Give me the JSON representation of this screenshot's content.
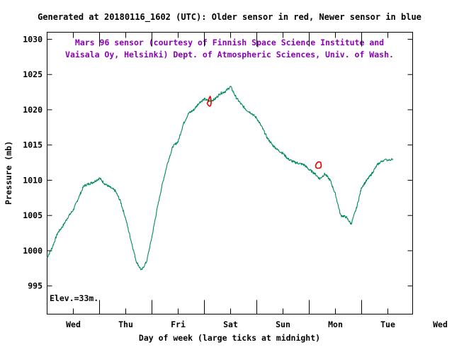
{
  "chart_data": {
    "type": "line",
    "title": "Generated at 20180116_1602 (UTC): Older sensor in red, Newer sensor in blue",
    "credit_lines": [
      "Mars 96 sensor (courtesy of Finnish Space Science Institute and",
      "Vaisala Oy, Helsinki) Dept. of Atmospheric Sciences, Univ. of Wash."
    ],
    "xlabel": "Day of week (large ticks at midnight)",
    "ylabel": "Pressure (mb)",
    "annotation": "Elev.=33m.",
    "xlim": [
      0,
      7
    ],
    "ylim": [
      991,
      1031
    ],
    "yticks": [
      995,
      1000,
      1005,
      1010,
      1015,
      1020,
      1025,
      1030
    ],
    "day_labels": [
      "Wed",
      "Thu",
      "Fri",
      "Sat",
      "Sun",
      "Mon",
      "Tue",
      "Wed"
    ],
    "grid": false,
    "colors": {
      "primary_series": "#008b5a",
      "older_sensor": "#e00000",
      "credit_text": "#8a00b8"
    },
    "series": [
      {
        "color": "#008b5a",
        "x": [
          0.0,
          0.1,
          0.2,
          0.3,
          0.4,
          0.5,
          0.6,
          0.7,
          0.8,
          0.9,
          1.0,
          1.1,
          1.2,
          1.3,
          1.4,
          1.5,
          1.6,
          1.7,
          1.8,
          1.9,
          2.0,
          2.1,
          2.2,
          2.3,
          2.4,
          2.5,
          2.6,
          2.7,
          2.8,
          2.9,
          3.0,
          3.1,
          3.2,
          3.3,
          3.4,
          3.5,
          3.6,
          3.7,
          3.8,
          3.9,
          4.0,
          4.1,
          4.2,
          4.3,
          4.4,
          4.5,
          4.6,
          4.7,
          4.8,
          4.9,
          5.0,
          5.1,
          5.2,
          5.3,
          5.4,
          5.5,
          5.6,
          5.7,
          5.8,
          5.9,
          6.0,
          6.1,
          6.2,
          6.3,
          6.4,
          6.6
        ],
        "y": [
          999.0,
          1000.5,
          1002.5,
          1003.5,
          1004.8,
          1005.8,
          1007.5,
          1009.2,
          1009.5,
          1009.8,
          1010.3,
          1009.5,
          1009.0,
          1008.5,
          1007.0,
          1004.5,
          1001.5,
          998.5,
          997.2,
          998.5,
          1002.0,
          1006.0,
          1009.5,
          1012.5,
          1014.8,
          1015.5,
          1018.0,
          1019.5,
          1020.0,
          1021.0,
          1021.5,
          1021.2,
          1021.5,
          1022.3,
          1022.6,
          1023.3,
          1021.8,
          1020.8,
          1020.0,
          1019.5,
          1018.8,
          1017.5,
          1016.0,
          1015.0,
          1014.3,
          1013.8,
          1013.0,
          1012.6,
          1012.4,
          1012.2,
          1011.5,
          1011.0,
          1010.2,
          1010.9,
          1010.0,
          1008.0,
          1005.0,
          1004.8,
          1003.8,
          1006.0,
          1009.0,
          1010.0,
          1011.0,
          1012.2,
          1012.8,
          1013.0
        ]
      },
      {
        "color": "#e00000",
        "x": [
          3.05,
          3.07,
          3.09,
          3.11,
          3.12,
          3.13,
          3.12,
          3.1,
          3.08,
          3.06
        ],
        "y": [
          1020.8,
          1021.2,
          1021.6,
          1021.9,
          1021.7,
          1021.0,
          1020.6,
          1020.5,
          1020.6,
          1020.8
        ]
      },
      {
        "color": "#e00000",
        "x": [
          5.12,
          5.14,
          5.17,
          5.2,
          5.22,
          5.23,
          5.22,
          5.19,
          5.15,
          5.13,
          5.12
        ],
        "y": [
          1012.1,
          1012.4,
          1012.6,
          1012.6,
          1012.5,
          1012.1,
          1011.8,
          1011.7,
          1011.7,
          1011.8,
          1012.1
        ]
      }
    ]
  }
}
